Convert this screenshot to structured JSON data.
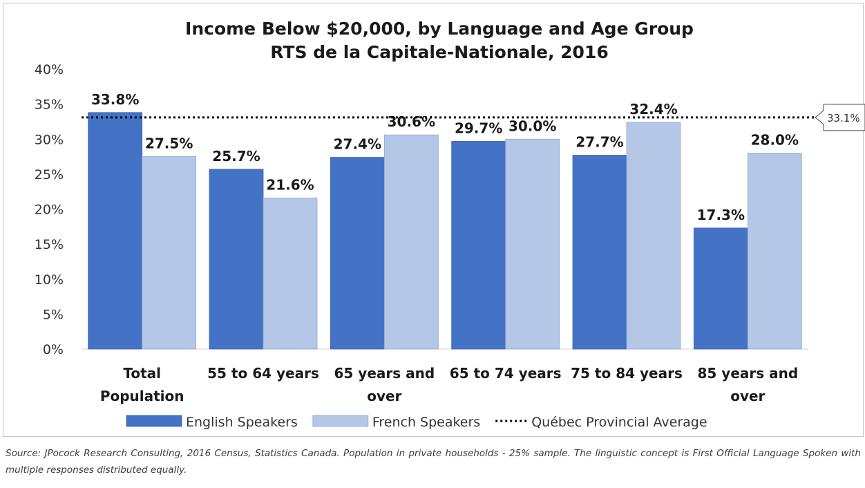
{
  "chart_data": {
    "type": "bar",
    "title": "Income Below $20,000, by Language and Age Group",
    "subtitle": "RTS de la Capitale-Nationale, 2016",
    "categories": [
      [
        "Total",
        "Population"
      ],
      [
        "55 to 64 years"
      ],
      [
        "65 years and",
        "over"
      ],
      [
        "65 to 74 years"
      ],
      [
        "75 to 84 years"
      ],
      [
        "85 years and",
        "over"
      ]
    ],
    "series": [
      {
        "name": "English Speakers",
        "color": "#4472c4",
        "values": [
          33.8,
          25.7,
          27.4,
          29.7,
          27.7,
          17.3
        ],
        "labels": [
          "33.8%",
          "25.7%",
          "27.4%",
          "29.7%",
          "27.7%",
          "17.3%"
        ]
      },
      {
        "name": "French Speakers",
        "color": "#b4c7e7",
        "values": [
          27.5,
          21.6,
          30.6,
          30.0,
          32.4,
          28.0
        ],
        "labels": [
          "27.5%",
          "21.6%",
          "30.6%",
          "30.0%",
          "32.4%",
          "28.0%"
        ]
      }
    ],
    "reference_line": {
      "name": "Québec Provincial Average",
      "value": 33.1,
      "label": "33.1%",
      "style": "dotted",
      "color": "#000000"
    },
    "ylim": [
      0,
      40
    ],
    "yticks": [
      0,
      5,
      10,
      15,
      20,
      25,
      30,
      35,
      40
    ],
    "ytick_labels": [
      "0%",
      "5%",
      "10%",
      "15%",
      "20%",
      "25%",
      "30%",
      "35%",
      "40%"
    ],
    "legend_position": "bottom",
    "grid": false
  },
  "source_note": "Source: JPocock Research Consulting, 2016 Census, Statistics Canada. Population in private households - 25% sample. The linguistic concept is First Official Language Spoken with multiple responses distributed equally."
}
